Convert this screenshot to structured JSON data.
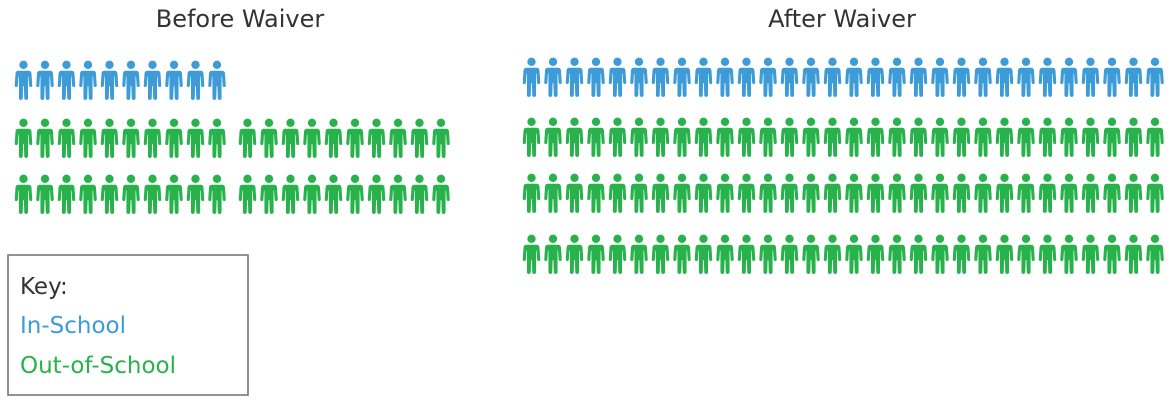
{
  "chart_data": [
    {
      "type": "pictograph",
      "title": "Before Waiver",
      "series": [
        {
          "name": "In-School",
          "count": 10
        },
        {
          "name": "Out-of-School",
          "count": 40
        }
      ]
    },
    {
      "type": "pictograph",
      "title": "After Waiver",
      "series": [
        {
          "name": "In-School",
          "count": 30
        },
        {
          "name": "Out-of-School",
          "count": 90
        }
      ]
    }
  ],
  "key": {
    "heading": "Key:",
    "items": [
      {
        "label": "In-School",
        "color": "#3d9bd8"
      },
      {
        "label": "Out-of-School",
        "color": "#28b24b"
      }
    ]
  },
  "colors": {
    "in_school": "#3d9bd8",
    "out_of_school": "#28b24b",
    "key_border": "#777777",
    "title_text": "#333333"
  }
}
